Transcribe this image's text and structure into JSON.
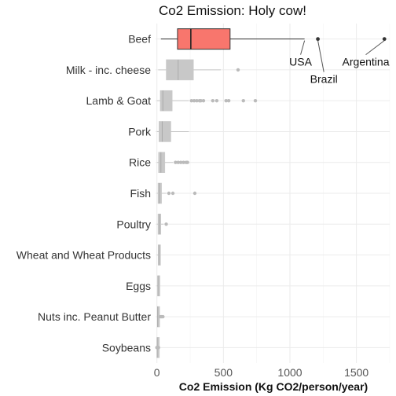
{
  "chart_data": {
    "type": "boxplot",
    "title": "Co2 Emission: Holy cow!",
    "xlabel": "Co2 Emission (Kg CO2/person/year)",
    "ylabel": "",
    "xlim": [
      -10,
      1750
    ],
    "xticks": [
      0,
      500,
      1000,
      1500
    ],
    "grid": true,
    "legend": "none",
    "colors": {
      "highlight": "#f8766d",
      "default": "#c8c8c8",
      "default_outlier": "#bbbbbb",
      "highlight_outlier": "#333333"
    },
    "categories": [
      "Beef",
      "Milk - inc. cheese",
      "Lamb & Goat",
      "Pork",
      "Rice",
      "Fish",
      "Poultry",
      "Wheat and Wheat Products",
      "Eggs",
      "Nuts inc. Peanut Butter",
      "Soybeans"
    ],
    "boxes": [
      {
        "category": "Beef",
        "highlight": true,
        "whisker_low": 30,
        "q1": 155,
        "median": 255,
        "q3": 550,
        "whisker_high": 1110,
        "outliers": [
          1210,
          1710
        ]
      },
      {
        "category": "Milk - inc. cheese",
        "highlight": false,
        "whisker_low": 10,
        "q1": 70,
        "median": 160,
        "q3": 275,
        "whisker_high": 480,
        "outliers": [
          610
        ]
      },
      {
        "category": "Lamb & Goat",
        "highlight": false,
        "whisker_low": 0,
        "q1": 25,
        "median": 45,
        "q3": 115,
        "whisker_high": 240,
        "outliers": [
          260,
          280,
          300,
          320,
          330,
          350,
          420,
          450,
          520,
          540,
          650,
          740
        ]
      },
      {
        "category": "Pork",
        "highlight": false,
        "whisker_low": 0,
        "q1": 15,
        "median": 40,
        "q3": 105,
        "whisker_high": 240,
        "outliers": []
      },
      {
        "category": "Rice",
        "highlight": false,
        "whisker_low": 0,
        "q1": 12,
        "median": 30,
        "q3": 60,
        "whisker_high": 120,
        "outliers": [
          140,
          160,
          180,
          200,
          220,
          230
        ]
      },
      {
        "category": "Fish",
        "highlight": false,
        "whisker_low": 0,
        "q1": 8,
        "median": 18,
        "q3": 35,
        "whisker_high": 70,
        "outliers": [
          90,
          120,
          285
        ]
      },
      {
        "category": "Poultry",
        "highlight": false,
        "whisker_low": 0,
        "q1": 8,
        "median": 18,
        "q3": 30,
        "whisker_high": 50,
        "outliers": [
          70
        ]
      },
      {
        "category": "Wheat and Wheat Products",
        "highlight": false,
        "whisker_low": 0,
        "q1": 10,
        "median": 15,
        "q3": 20,
        "whisker_high": 25,
        "outliers": []
      },
      {
        "category": "Eggs",
        "highlight": false,
        "whisker_low": 0,
        "q1": 5,
        "median": 8,
        "q3": 12,
        "whisker_high": 16,
        "outliers": []
      },
      {
        "category": "Nuts inc. Peanut Butter",
        "highlight": false,
        "whisker_low": 0,
        "q1": 3,
        "median": 6,
        "q3": 10,
        "whisker_high": 18,
        "outliers": [
          25,
          35,
          45
        ]
      },
      {
        "category": "Soybeans",
        "highlight": false,
        "whisker_low": 0,
        "q1": 1,
        "median": 2,
        "q3": 3,
        "whisker_high": 5,
        "outliers": [
          0,
          8,
          12
        ]
      }
    ],
    "annotations": [
      {
        "label": "USA",
        "point_value": 1110,
        "category": "Beef",
        "label_value": 1080,
        "label_offset": "below"
      },
      {
        "label": "Brazil",
        "point_value": 1210,
        "category": "Beef",
        "label_value": 1255,
        "label_offset": "far-below"
      },
      {
        "label": "Argentina",
        "point_value": 1710,
        "category": "Beef",
        "label_value": 1570,
        "label_offset": "below"
      }
    ]
  }
}
